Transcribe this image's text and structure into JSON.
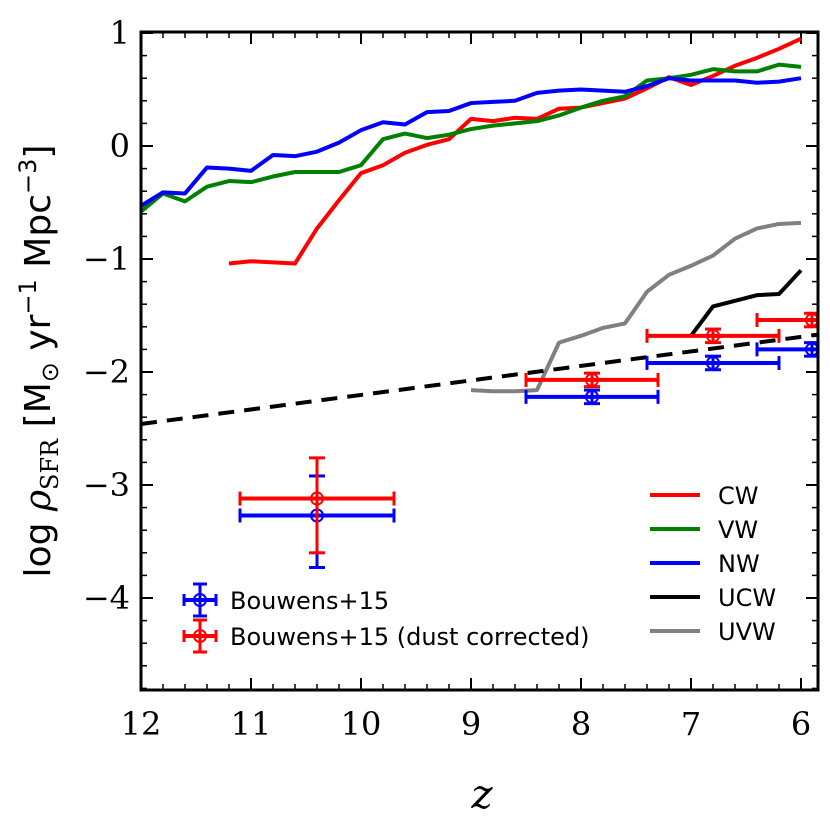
{
  "chart_data": {
    "type": "line",
    "title": "",
    "xlabel": "z",
    "ylabel": "log ρ_SFR [M_⊙ yr^−1 Mpc^−3]",
    "ylabel_parts": {
      "prefix": "log ",
      "rho": "ρ",
      "sub": "SFR",
      "units_open": " [M",
      "sun": "⊙",
      "yr": " yr",
      "yr_exp": "−1",
      "mpc": " Mpc",
      "mpc_exp": "−3",
      "close": "]"
    },
    "xlim": [
      12,
      5.85
    ],
    "ylim": [
      -4.8,
      1.0
    ],
    "x_ticks": [
      12,
      11,
      10,
      9,
      8,
      7,
      6
    ],
    "x_tick_labels": [
      "12",
      "11",
      "10",
      "9",
      "8",
      "7",
      "6"
    ],
    "y_ticks": [
      1,
      0,
      -1,
      -2,
      -3,
      -4
    ],
    "y_tick_labels": [
      "1",
      "0",
      "−1",
      "−2",
      "−3",
      "−4"
    ],
    "series": [
      {
        "name": "CW",
        "color": "#ff0000",
        "x": [
          11.2,
          11.0,
          10.8,
          10.6,
          10.4,
          10.2,
          10.0,
          9.8,
          9.6,
          9.4,
          9.2,
          9.0,
          8.8,
          8.6,
          8.4,
          8.2,
          8.0,
          7.8,
          7.6,
          7.4,
          7.2,
          7.0,
          6.8,
          6.6,
          6.4,
          6.2,
          6.0
        ],
        "values": [
          -1.04,
          -1.02,
          -1.03,
          -1.04,
          -0.73,
          -0.48,
          -0.24,
          -0.17,
          -0.06,
          0.01,
          0.06,
          0.24,
          0.22,
          0.25,
          0.24,
          0.33,
          0.34,
          0.38,
          0.42,
          0.51,
          0.61,
          0.54,
          0.62,
          0.71,
          0.78,
          0.86,
          0.95
        ]
      },
      {
        "name": "VW",
        "color": "#008000",
        "x": [
          12.0,
          11.8,
          11.6,
          11.4,
          11.2,
          11.0,
          10.8,
          10.6,
          10.4,
          10.2,
          10.0,
          9.8,
          9.6,
          9.4,
          9.2,
          9.0,
          8.8,
          8.6,
          8.4,
          8.2,
          8.0,
          7.8,
          7.6,
          7.4,
          7.2,
          7.0,
          6.8,
          6.6,
          6.4,
          6.2,
          6.0
        ],
        "values": [
          -0.58,
          -0.42,
          -0.49,
          -0.36,
          -0.31,
          -0.32,
          -0.27,
          -0.23,
          -0.23,
          -0.23,
          -0.17,
          0.06,
          0.11,
          0.07,
          0.1,
          0.15,
          0.18,
          0.2,
          0.22,
          0.27,
          0.34,
          0.4,
          0.44,
          0.58,
          0.6,
          0.63,
          0.68,
          0.66,
          0.66,
          0.72,
          0.7
        ]
      },
      {
        "name": "NW",
        "color": "#0000ff",
        "x": [
          12.0,
          11.8,
          11.6,
          11.4,
          11.2,
          11.0,
          10.8,
          10.6,
          10.4,
          10.2,
          10.0,
          9.8,
          9.6,
          9.4,
          9.2,
          9.0,
          8.8,
          8.6,
          8.4,
          8.2,
          8.0,
          7.8,
          7.6,
          7.4,
          7.2,
          7.0,
          6.8,
          6.6,
          6.4,
          6.2,
          6.0
        ],
        "values": [
          -0.53,
          -0.41,
          -0.42,
          -0.19,
          -0.2,
          -0.22,
          -0.08,
          -0.09,
          -0.05,
          0.03,
          0.14,
          0.21,
          0.19,
          0.3,
          0.31,
          0.38,
          0.39,
          0.4,
          0.47,
          0.49,
          0.5,
          0.49,
          0.48,
          0.53,
          0.6,
          0.58,
          0.58,
          0.58,
          0.56,
          0.57,
          0.6
        ]
      },
      {
        "name": "UCW",
        "color": "#000000",
        "x": [
          7.0,
          6.8,
          6.6,
          6.4,
          6.2,
          6.0
        ],
        "values": [
          -1.68,
          -1.42,
          -1.37,
          -1.32,
          -1.31,
          -1.1
        ]
      },
      {
        "name": "UVW",
        "color": "#808080",
        "x": [
          9.0,
          8.8,
          8.6,
          8.4,
          8.2,
          8.0,
          7.8,
          7.6,
          7.4,
          7.2,
          7.0,
          6.8,
          6.6,
          6.4,
          6.2,
          6.0
        ],
        "values": [
          -2.16,
          -2.17,
          -2.17,
          -2.16,
          -1.74,
          -1.68,
          -1.61,
          -1.57,
          -1.29,
          -1.14,
          -1.06,
          -0.97,
          -0.82,
          -0.73,
          -0.69,
          -0.68
        ]
      }
    ],
    "reference_line": {
      "style": "dashed",
      "color": "#000000",
      "x": [
        12.0,
        5.85
      ],
      "values": [
        -2.46,
        -1.67
      ]
    },
    "observations": [
      {
        "name": "Bouwens+15",
        "color": "#0000ff",
        "points": [
          {
            "z": 7.9,
            "value": -2.22,
            "x_lo": 8.5,
            "x_hi": 7.3,
            "y_err": 0.06
          },
          {
            "z": 6.8,
            "value": -1.92,
            "x_lo": 7.4,
            "x_hi": 6.2,
            "y_err": 0.06
          },
          {
            "z": 5.9,
            "value": -1.8,
            "x_lo": 6.4,
            "x_hi": 5.85,
            "y_err": 0.06
          }
        ]
      },
      {
        "name": "Bouwens+15 (dust corrected)",
        "color": "#ff0000",
        "points": [
          {
            "z": 7.9,
            "value": -2.07,
            "x_lo": 8.5,
            "x_hi": 7.3,
            "y_err": 0.06
          },
          {
            "z": 6.8,
            "value": -1.68,
            "x_lo": 7.4,
            "x_hi": 6.2,
            "y_err": 0.06
          },
          {
            "z": 5.9,
            "value": -1.54,
            "x_lo": 6.4,
            "x_hi": 5.85,
            "y_err": 0.06
          }
        ]
      }
    ],
    "typical_error": [
      {
        "name": "Bouwens+15",
        "color": "#0000ff",
        "z": 10.4,
        "value": -3.27,
        "x_lo": 11.1,
        "x_hi": 9.7,
        "y_lo": -3.73,
        "y_hi": -2.92
      },
      {
        "name": "Bouwens+15 (dust corrected)",
        "color": "#ff0000",
        "z": 10.4,
        "value": -3.12,
        "x_lo": 11.1,
        "x_hi": 9.7,
        "y_lo": -3.6,
        "y_hi": -2.76
      }
    ],
    "legend": {
      "lines_position": "bottom-right",
      "points_position": "bottom-left",
      "line_entries": [
        "CW",
        "VW",
        "NW",
        "UCW",
        "UVW"
      ],
      "point_entries": [
        "Bouwens+15",
        "Bouwens+15 (dust corrected)"
      ]
    }
  }
}
